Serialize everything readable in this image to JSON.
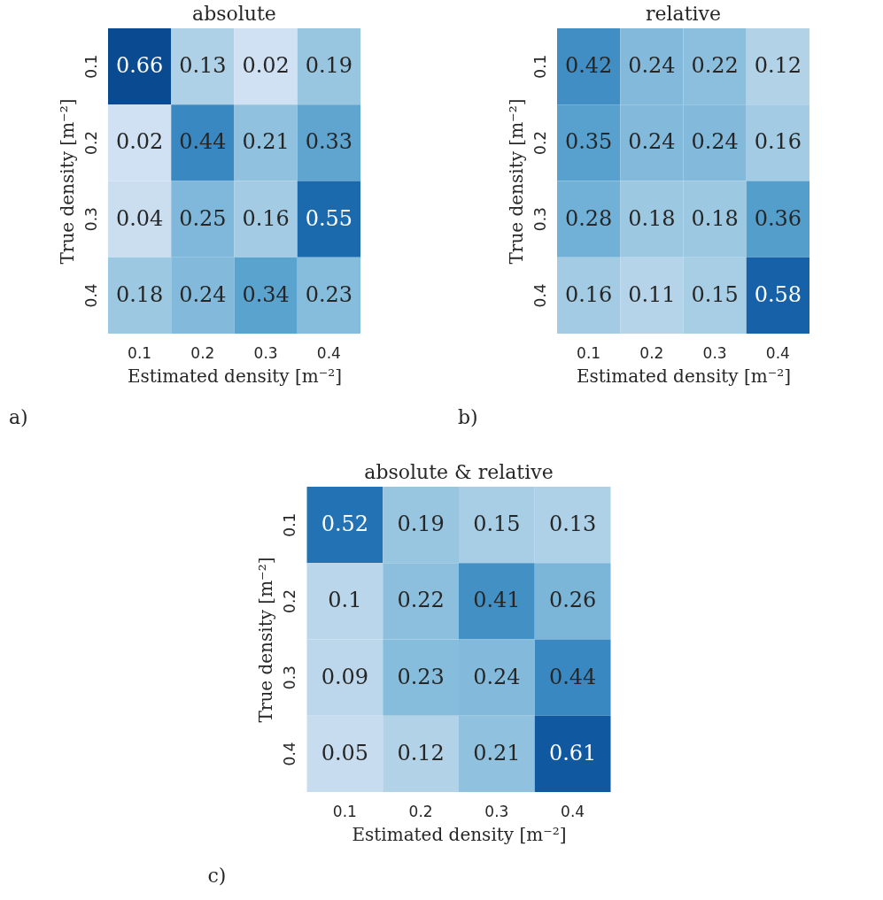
{
  "chart_data": [
    {
      "type": "heatmap",
      "title": "absolute",
      "xlabel": "Estimated density [m⁻²]",
      "ylabel": "True density [m⁻²]",
      "annotations": [
        "a)"
      ],
      "data_labels": true,
      "legend": false,
      "grid": false,
      "categories": [
        "0.1",
        "0.2",
        "0.3",
        "0.4"
      ],
      "y_categories": [
        "0.1",
        "0.2",
        "0.3",
        "0.4"
      ],
      "cells": [
        [
          0.66,
          0.13,
          0.02,
          0.19
        ],
        [
          0.02,
          0.44,
          0.21,
          0.33
        ],
        [
          0.04,
          0.25,
          0.16,
          0.55
        ],
        [
          0.18,
          0.24,
          0.34,
          0.23
        ]
      ]
    },
    {
      "type": "heatmap",
      "title": "relative",
      "xlabel": "Estimated density [m⁻²]",
      "ylabel": "True density [m⁻²]",
      "annotations": [
        "b)"
      ],
      "data_labels": true,
      "legend": false,
      "grid": false,
      "categories": [
        "0.1",
        "0.2",
        "0.3",
        "0.4"
      ],
      "y_categories": [
        "0.1",
        "0.2",
        "0.3",
        "0.4"
      ],
      "cells": [
        [
          0.42,
          0.24,
          0.22,
          0.12
        ],
        [
          0.35,
          0.24,
          0.24,
          0.16
        ],
        [
          0.28,
          0.18,
          0.18,
          0.36
        ],
        [
          0.16,
          0.11,
          0.15,
          0.58
        ]
      ]
    },
    {
      "type": "heatmap",
      "title": "absolute & relative",
      "xlabel": "Estimated density [m⁻²]",
      "ylabel": "True density [m⁻²]",
      "annotations": [
        "c)"
      ],
      "data_labels": true,
      "legend": false,
      "grid": false,
      "categories": [
        "0.1",
        "0.2",
        "0.3",
        "0.4"
      ],
      "y_categories": [
        "0.1",
        "0.2",
        "0.3",
        "0.4"
      ],
      "cells": [
        [
          0.52,
          0.19,
          0.15,
          0.13
        ],
        [
          0.1,
          0.22,
          0.41,
          0.26
        ],
        [
          0.09,
          0.23,
          0.24,
          0.44
        ],
        [
          0.05,
          0.12,
          0.21,
          0.61
        ]
      ]
    }
  ]
}
